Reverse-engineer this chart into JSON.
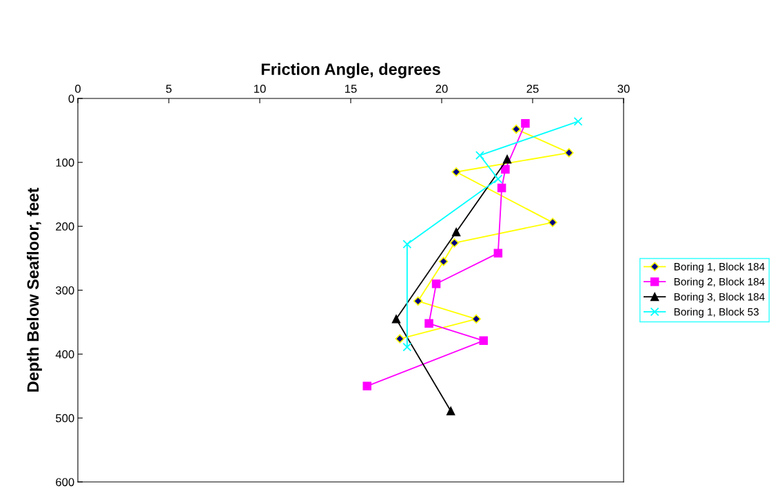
{
  "chart_data": {
    "type": "line",
    "xlabel": "Friction Angle, degrees",
    "ylabel": "Depth Below Seafloor, feet",
    "xlim": [
      0,
      30
    ],
    "xticks": [
      0,
      5,
      10,
      15,
      20,
      25,
      30
    ],
    "ylim": [
      600,
      0
    ],
    "yticks": [
      0,
      100,
      200,
      300,
      400,
      500,
      600
    ],
    "grid": false,
    "legend": "right",
    "series": [
      {
        "name": "Boring 1, Block 184",
        "color": "#ffff00",
        "marker": "diamond",
        "x": [
          24.1,
          27.0,
          20.8,
          26.1,
          20.7,
          20.1,
          18.7,
          21.9,
          17.7
        ],
        "values": [
          48,
          85,
          115,
          194,
          226,
          255,
          317,
          345,
          376
        ]
      },
      {
        "name": "Boring 2, Block 184",
        "color": "#ff00ff",
        "marker": "square",
        "x": [
          24.6,
          23.5,
          23.3,
          23.1,
          19.7,
          19.3,
          22.3,
          15.9
        ],
        "values": [
          39,
          111,
          140,
          242,
          290,
          352,
          379,
          450
        ]
      },
      {
        "name": "Boring 3, Block 184",
        "color": "#000000",
        "marker": "triangle",
        "x": [
          23.6,
          20.8,
          17.5,
          20.5
        ],
        "values": [
          95,
          209,
          345,
          489
        ]
      },
      {
        "name": "Boring 1, Block 53",
        "color": "#00ffff",
        "marker": "cross",
        "x": [
          27.5,
          22.1,
          23.1,
          18.1,
          18.1
        ],
        "values": [
          36,
          89,
          126,
          228,
          389
        ]
      }
    ]
  }
}
